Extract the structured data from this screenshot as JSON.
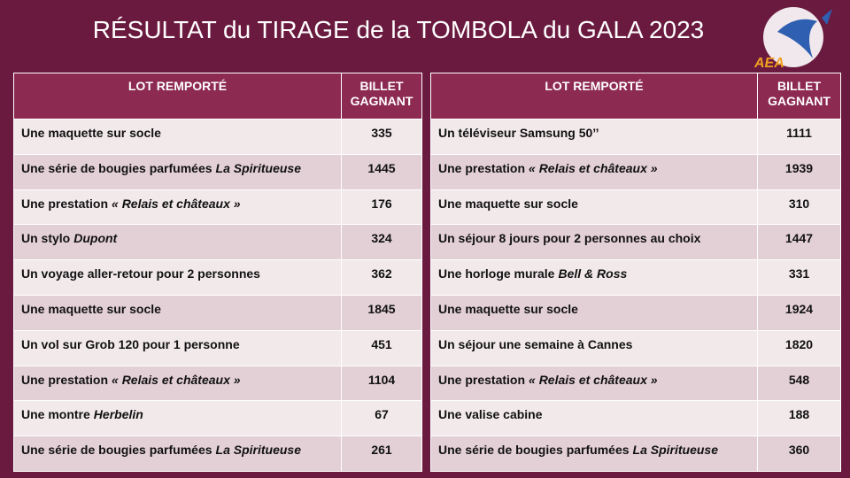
{
  "title": "RÉSULTAT du TIRAGE de la TOMBOLA du GALA 2023",
  "logo": {
    "text": "AEA"
  },
  "tables": [
    {
      "headers": [
        "LOT REMPORTÉ",
        "BILLET GAGNANT"
      ],
      "rows": [
        {
          "lot": {
            "text": "Une maquette sur socle"
          },
          "billet": 335
        },
        {
          "lot": {
            "text": "Une série de bougies parfumées",
            "em": "La Spiritueuse"
          },
          "billet": 1445
        },
        {
          "lot": {
            "text": "Une prestation",
            "em": "« Relais et châteaux »"
          },
          "billet": 176
        },
        {
          "lot": {
            "text": "Un stylo",
            "em": "Dupont"
          },
          "billet": 324
        },
        {
          "lot": {
            "text": "Un voyage aller-retour pour 2 personnes"
          },
          "billet": 362
        },
        {
          "lot": {
            "text": "Une maquette sur socle"
          },
          "billet": 1845
        },
        {
          "lot": {
            "text": "Un vol sur Grob 120 pour 1 personne"
          },
          "billet": 451
        },
        {
          "lot": {
            "text": "Une prestation",
            "em": "« Relais et châteaux »"
          },
          "billet": 1104
        },
        {
          "lot": {
            "text": "Une montre",
            "em": "Herbelin"
          },
          "billet": 67
        },
        {
          "lot": {
            "text": "Une série de bougies parfumées",
            "em": "La Spiritueuse"
          },
          "billet": 261
        }
      ]
    },
    {
      "headers": [
        "LOT REMPORTÉ",
        "BILLET GAGNANT"
      ],
      "rows": [
        {
          "lot": {
            "text": "Un téléviseur Samsung 50’’"
          },
          "billet": 1111
        },
        {
          "lot": {
            "text": "Une prestation",
            "em": "« Relais et châteaux »"
          },
          "billet": 1939
        },
        {
          "lot": {
            "text": "Une maquette sur socle"
          },
          "billet": 310
        },
        {
          "lot": {
            "text": "Un séjour 8 jours pour 2 personnes au choix"
          },
          "billet": 1447
        },
        {
          "lot": {
            "text": "Une horloge murale",
            "em": "Bell & Ross"
          },
          "billet": 331
        },
        {
          "lot": {
            "text": "Une maquette sur socle"
          },
          "billet": 1924
        },
        {
          "lot": {
            "text": "Un séjour une semaine à Cannes"
          },
          "billet": 1820
        },
        {
          "lot": {
            "text": "Une prestation",
            "em": "« Relais et châteaux »"
          },
          "billet": 548
        },
        {
          "lot": {
            "text": "Une valise cabine"
          },
          "billet": 188
        },
        {
          "lot": {
            "text": "Une série de bougies parfumées",
            "em": "La Spiritueuse"
          },
          "billet": 360
        }
      ]
    }
  ]
}
